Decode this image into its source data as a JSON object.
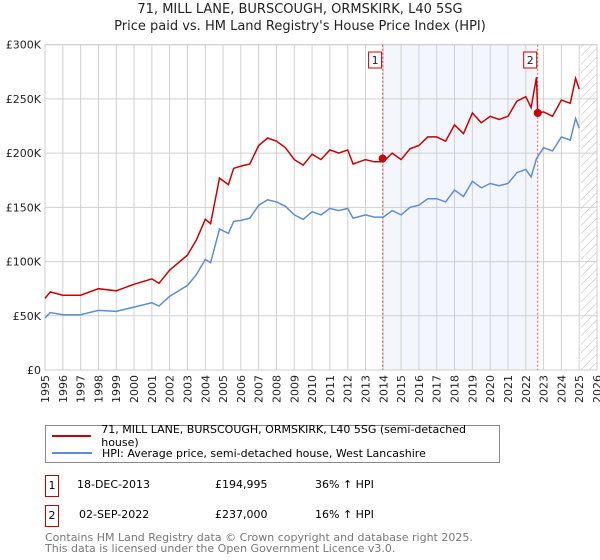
{
  "title": "71, MILL LANE, BURSCOUGH, ORMSKIRK, L40 5SG",
  "subtitle": "Price paid vs. HM Land Registry's House Price Index (HPI)",
  "chart_data": {
    "type": "line",
    "title": "71, MILL LANE, BURSCOUGH, ORMSKIRK, L40 5SG",
    "subtitle": "Price paid vs. HM Land Registry's House Price Index (HPI)",
    "xlim": [
      1995,
      2026
    ],
    "ylim": [
      0,
      300000
    ],
    "x_ticks": [
      "1995",
      "1996",
      "1997",
      "1998",
      "1999",
      "2000",
      "2001",
      "2002",
      "2003",
      "2004",
      "2005",
      "2006",
      "2007",
      "2008",
      "2009",
      "2010",
      "2011",
      "2012",
      "2013",
      "2014",
      "2015",
      "2016",
      "2017",
      "2018",
      "2019",
      "2020",
      "2021",
      "2022",
      "2023",
      "2024",
      "2025",
      "2026"
    ],
    "y_ticks": [
      {
        "v": 0,
        "label": "£0"
      },
      {
        "v": 50000,
        "label": "£50K"
      },
      {
        "v": 100000,
        "label": "£100K"
      },
      {
        "v": 150000,
        "label": "£150K"
      },
      {
        "v": 200000,
        "label": "£200K"
      },
      {
        "v": 250000,
        "label": "£250K"
      },
      {
        "v": 300000,
        "label": "£300K"
      }
    ],
    "grid": true,
    "shaded_range": [
      2013.96,
      2022.67
    ],
    "data_end": 2025.1,
    "series": [
      {
        "name": "71, MILL LANE, BURSCOUGH, ORMSKIRK, L40 5SG (semi-detached house)",
        "color": "#cc0000",
        "x": [
          1995,
          1995.3,
          1996,
          1997,
          1998,
          1999,
          2000,
          2001,
          2001.4,
          2002,
          2003,
          2003.5,
          2004,
          2004.3,
          2004.8,
          2005.3,
          2005.6,
          2006,
          2006.5,
          2007,
          2007.5,
          2008,
          2008.5,
          2009,
          2009.5,
          2010,
          2010.5,
          2011,
          2011.5,
          2012,
          2012.3,
          2013,
          2013.5,
          2014,
          2014.5,
          2015,
          2015.5,
          2016,
          2016.5,
          2017,
          2017.5,
          2018,
          2018.5,
          2019,
          2019.5,
          2020,
          2020.5,
          2021,
          2021.5,
          2022,
          2022.3,
          2022.6,
          2022.67,
          2023,
          2023.5,
          2024,
          2024.5,
          2024.8,
          2025
        ],
        "y": [
          66000,
          72000,
          69000,
          69000,
          75000,
          73000,
          79000,
          84000,
          80000,
          92000,
          106000,
          120000,
          139000,
          135000,
          177000,
          171000,
          186000,
          188000,
          190000,
          207000,
          214000,
          211000,
          205000,
          194000,
          189000,
          199000,
          194000,
          203000,
          200000,
          203000,
          190000,
          194000,
          192000,
          192000,
          200000,
          194000,
          204000,
          207000,
          215000,
          215000,
          211000,
          226000,
          218000,
          237000,
          228000,
          234000,
          231000,
          234000,
          248000,
          252000,
          242000,
          270000,
          237000,
          238000,
          234000,
          249000,
          246000,
          269000,
          259000
        ]
      },
      {
        "name": "HPI: Average price, semi-detached house, West Lancashire",
        "color": "#5b8ed6",
        "x": [
          1995,
          1995.3,
          1996,
          1997,
          1998,
          1999,
          2000,
          2001,
          2001.4,
          2002,
          2003,
          2003.5,
          2004,
          2004.3,
          2004.8,
          2005.3,
          2005.6,
          2006,
          2006.5,
          2007,
          2007.5,
          2008,
          2008.5,
          2009,
          2009.5,
          2010,
          2010.5,
          2011,
          2011.5,
          2012,
          2012.3,
          2013,
          2013.5,
          2014,
          2014.5,
          2015,
          2015.5,
          2016,
          2016.5,
          2017,
          2017.5,
          2018,
          2018.5,
          2019,
          2019.5,
          2020,
          2020.5,
          2021,
          2021.5,
          2022,
          2022.3,
          2022.6,
          2023,
          2023.5,
          2024,
          2024.5,
          2024.8,
          2025
        ],
        "y": [
          48000,
          53000,
          51000,
          51000,
          55000,
          54000,
          58000,
          62000,
          59000,
          68000,
          78000,
          88000,
          102000,
          99000,
          130000,
          126000,
          137000,
          138000,
          140000,
          152000,
          157000,
          155000,
          151000,
          143000,
          139000,
          146000,
          143000,
          149000,
          147000,
          149000,
          140000,
          143000,
          141000,
          141000,
          147000,
          143000,
          150000,
          152000,
          158000,
          158000,
          155000,
          166000,
          160000,
          174000,
          168000,
          172000,
          170000,
          172000,
          182000,
          185000,
          178000,
          195000,
          205000,
          202000,
          215000,
          212000,
          232000,
          223000
        ]
      }
    ],
    "sales": [
      {
        "id": "1",
        "x": 2013.96,
        "y": 194995
      },
      {
        "id": "2",
        "x": 2022.67,
        "y": 237000
      }
    ]
  },
  "legend": {
    "property": "71, MILL LANE, BURSCOUGH, ORMSKIRK, L40 5SG (semi-detached house)",
    "hpi": "HPI: Average price, semi-detached house, West Lancashire"
  },
  "transactions": [
    {
      "id": "1",
      "date": "18-DEC-2013",
      "price": "£194,995",
      "hpi": "36% ↑ HPI"
    },
    {
      "id": "2",
      "date": "02-SEP-2022",
      "price": "£237,000",
      "hpi": "16% ↑ HPI"
    }
  ],
  "footer": {
    "line1": "Contains HM Land Registry data © Crown copyright and database right 2025.",
    "line2": "This data is licensed under the Open Government Licence v3.0."
  }
}
